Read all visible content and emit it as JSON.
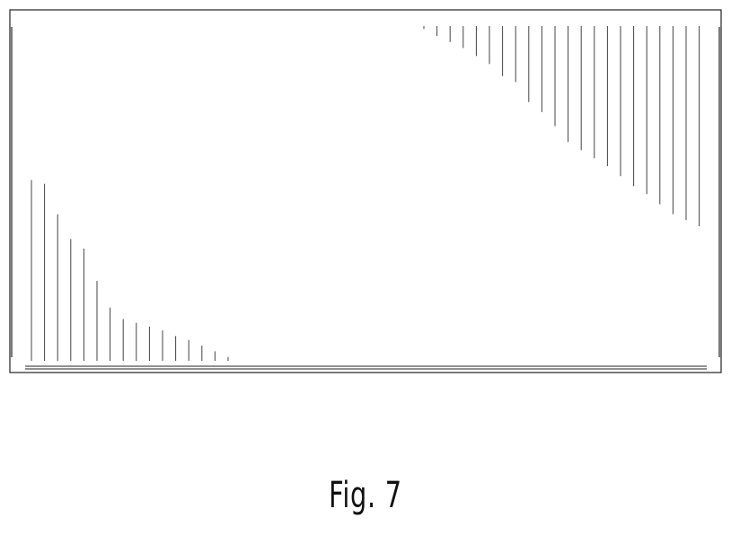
{
  "figure": {
    "label": "Fig. 7",
    "line_color": "#222222",
    "hatch_color": "#444444"
  },
  "chart_data": {
    "type": "bar",
    "series": [
      {
        "values": [
          0.95,
          0.93,
          0.77,
          0.64,
          0.59,
          0.42,
          0.28,
          0.22,
          0.2,
          0.18,
          0.16,
          0.13,
          0.11,
          0.08,
          0.05,
          0.02
        ]
      },
      {
        "values": [
          0.01,
          0.05,
          0.08,
          0.11,
          0.15,
          0.19,
          0.25,
          0.28,
          0.38,
          0.43,
          0.5,
          0.58,
          0.62,
          0.66,
          0.7,
          0.75,
          0.8,
          0.84,
          0.89,
          0.94,
          0.97,
          1.0
        ]
      }
    ]
  }
}
